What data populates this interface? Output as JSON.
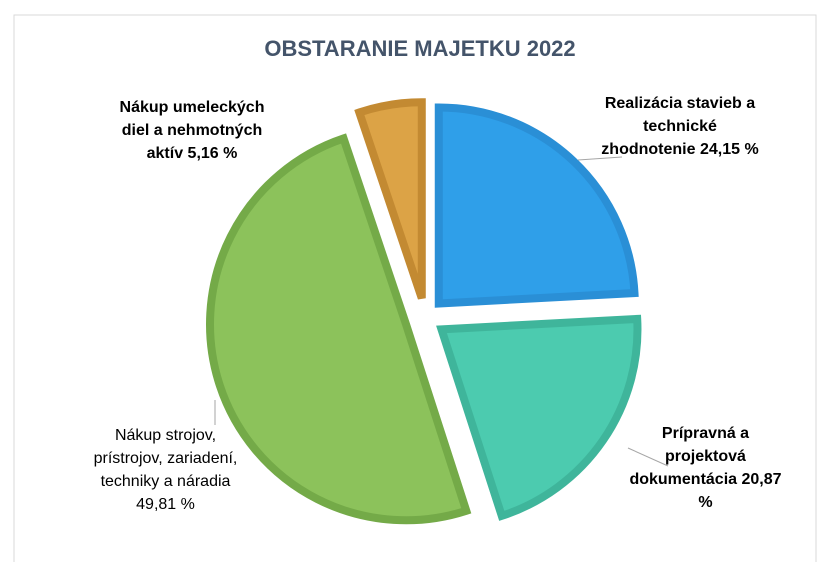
{
  "chart_data": {
    "type": "pie",
    "title": "OBSTARANIE MAJETKU 2022",
    "categories": [
      "Realizácia stavieb a technické zhodnotenie",
      "Prípravná a projektová dokumentácia",
      "Nákup strojov, prístrojov, zariadení, techniky a náradia",
      "Nákup umeleckých diel a nehmotných aktív"
    ],
    "values": [
      24.15,
      20.87,
      49.81,
      5.16
    ],
    "value_labels": [
      "24,15 %",
      "20,87 %",
      "49,81 %",
      "5,16 %"
    ],
    "colors": [
      "#2f9fe9",
      "#4ccbaf",
      "#8cc25b",
      "#dca346"
    ],
    "border_colors": [
      "#2a8fd6",
      "#3fb59b",
      "#74aa48",
      "#c38a32"
    ]
  }
}
